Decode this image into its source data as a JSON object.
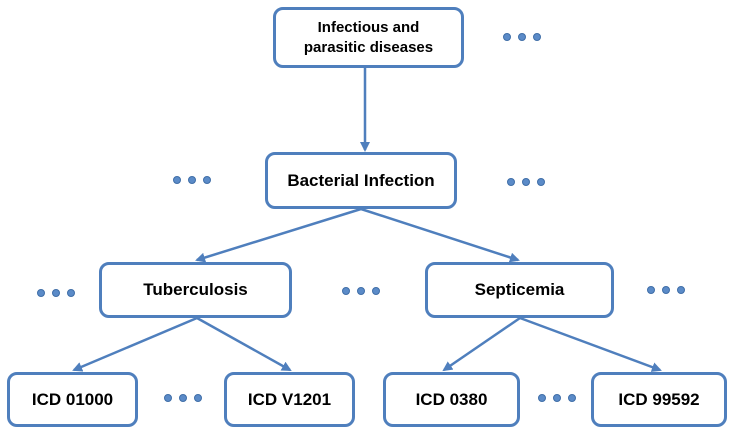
{
  "diagram": {
    "nodes": {
      "root": {
        "line1": "Infectious and",
        "line2": "parasitic diseases"
      },
      "bacterial": "Bacterial Infection",
      "tuberculosis": "Tuberculosis",
      "septicemia": "Septicemia",
      "icd1": "ICD 01000",
      "icd2": "ICD V1201",
      "icd3": "ICD 0380",
      "icd4": "ICD 99592"
    },
    "edges": [
      [
        "root",
        "bacterial"
      ],
      [
        "bacterial",
        "tuberculosis"
      ],
      [
        "bacterial",
        "septicemia"
      ],
      [
        "tuberculosis",
        "icd1"
      ],
      [
        "tuberculosis",
        "icd2"
      ],
      [
        "septicemia",
        "icd3"
      ],
      [
        "septicemia",
        "icd4"
      ]
    ],
    "colors": {
      "stroke": "#4f7fbd",
      "dot": "#5b8bc8"
    }
  }
}
